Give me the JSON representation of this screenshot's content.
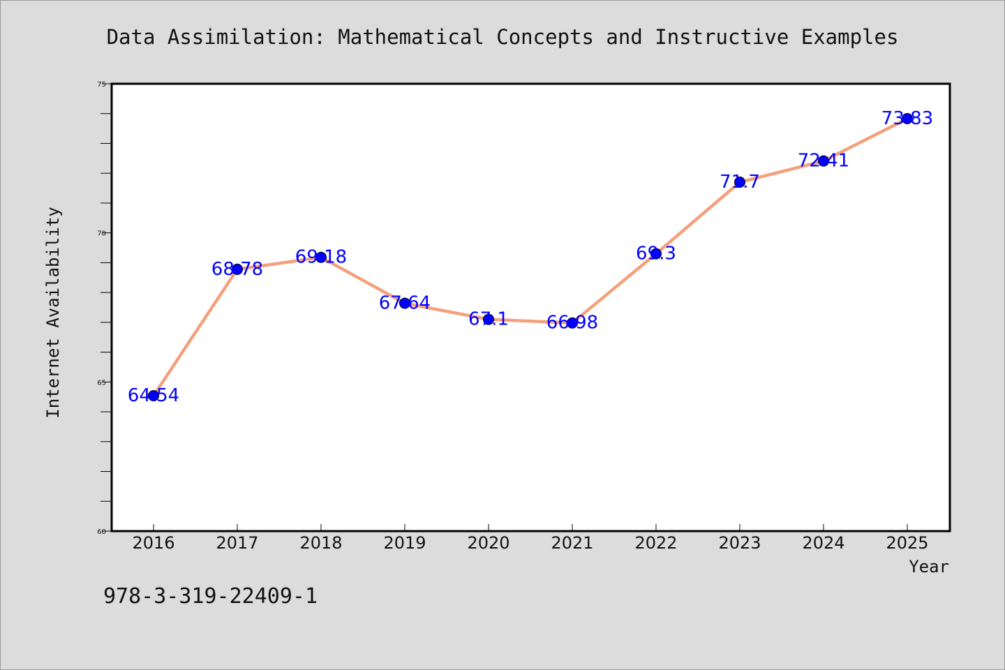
{
  "chart_data": {
    "type": "line",
    "title": "Data Assimilation: Mathematical Concepts and Instructive Examples",
    "xlabel": "Year",
    "ylabel": "Internet Availability",
    "categories": [
      "2016",
      "2017",
      "2018",
      "2019",
      "2020",
      "2021",
      "2022",
      "2023",
      "2024",
      "2025"
    ],
    "series": [
      {
        "values": [
          64.54,
          68.78,
          69.18,
          67.64,
          67.1,
          66.98,
          69.3,
          71.7,
          72.41,
          73.83
        ],
        "labels": [
          "64.54",
          "68.78",
          "69.18",
          "67.64",
          "67.1",
          "66.98",
          "69.3",
          "71.7",
          "72.41",
          "73.83"
        ]
      }
    ],
    "ylim": [
      60,
      75
    ],
    "yticks": [
      "60",
      "65",
      "70",
      "75"
    ],
    "grid": false,
    "line_color": "#f4a07c",
    "marker_color": "#0000ff",
    "label_color": "#0000ff",
    "plot_background": "#ffffff",
    "figure_background": "#dcdcdc"
  },
  "footnote": "978-3-319-22409-1"
}
